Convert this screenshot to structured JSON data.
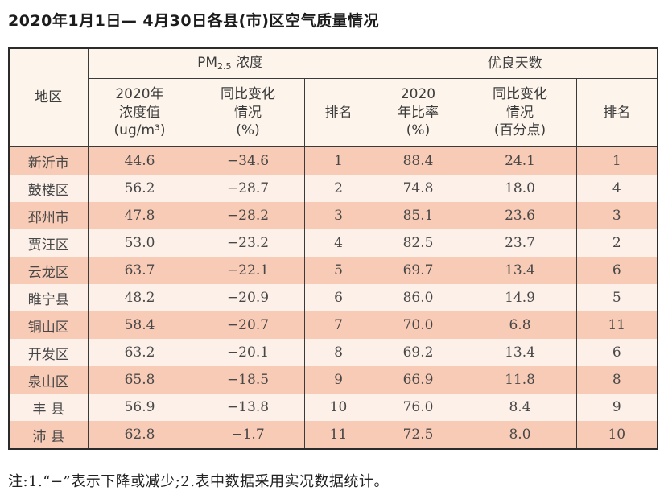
{
  "page": {
    "title": "2020年1月1日— 4月30日各县(市)区空气质量情况",
    "note": "注:1.“−”表示下降或减少;2.表中数据采用实况数据统计。"
  },
  "table": {
    "header": {
      "region": "地区",
      "pm25_group": {
        "prefix": "PM",
        "sub": "2.5",
        "suffix": " 浓度"
      },
      "good_days_group": "优良天数",
      "col_pm_value": "2020年\n浓度值\n(ug/m³)",
      "col_pm_change": "同比变化\n情况\n(%)",
      "col_pm_rank": "排名",
      "col_gd_ratio": "2020\n年比率\n(%)",
      "col_gd_change": "同比变化\n情况\n(百分点)",
      "col_gd_rank": "排名"
    },
    "rows": [
      [
        "新沂市",
        "44.6",
        "−34.6",
        "1",
        "88.4",
        "24.1",
        "1"
      ],
      [
        "鼓楼区",
        "56.2",
        "−28.7",
        "2",
        "74.8",
        "18.0",
        "4"
      ],
      [
        "邳州市",
        "47.8",
        "−28.2",
        "3",
        "85.1",
        "23.6",
        "3"
      ],
      [
        "贾汪区",
        "53.0",
        "−23.2",
        "4",
        "82.5",
        "23.7",
        "2"
      ],
      [
        "云龙区",
        "63.7",
        "−22.1",
        "5",
        "69.7",
        "13.4",
        "6"
      ],
      [
        "睢宁县",
        "48.2",
        "−20.9",
        "6",
        "86.0",
        "14.9",
        "5"
      ],
      [
        "铜山区",
        "58.4",
        "−20.7",
        "7",
        "70.0",
        "6.8",
        "11"
      ],
      [
        "开发区",
        "63.2",
        "−20.1",
        "8",
        "69.2",
        "13.4",
        "6"
      ],
      [
        "泉山区",
        "65.8",
        "−18.5",
        "9",
        "66.9",
        "11.8",
        "8"
      ],
      [
        "丰 县",
        "56.9",
        "−13.8",
        "10",
        "76.0",
        "8.4",
        "9"
      ],
      [
        "沛 县",
        "62.8",
        "−1.7",
        "11",
        "72.5",
        "8.0",
        "10"
      ]
    ]
  },
  "colors": {
    "row_odd_bg": "#f8cbb6",
    "row_even_bg": "#fcf0e9",
    "header_bg": "#fdf4ec",
    "border": "#3a3a3a"
  }
}
